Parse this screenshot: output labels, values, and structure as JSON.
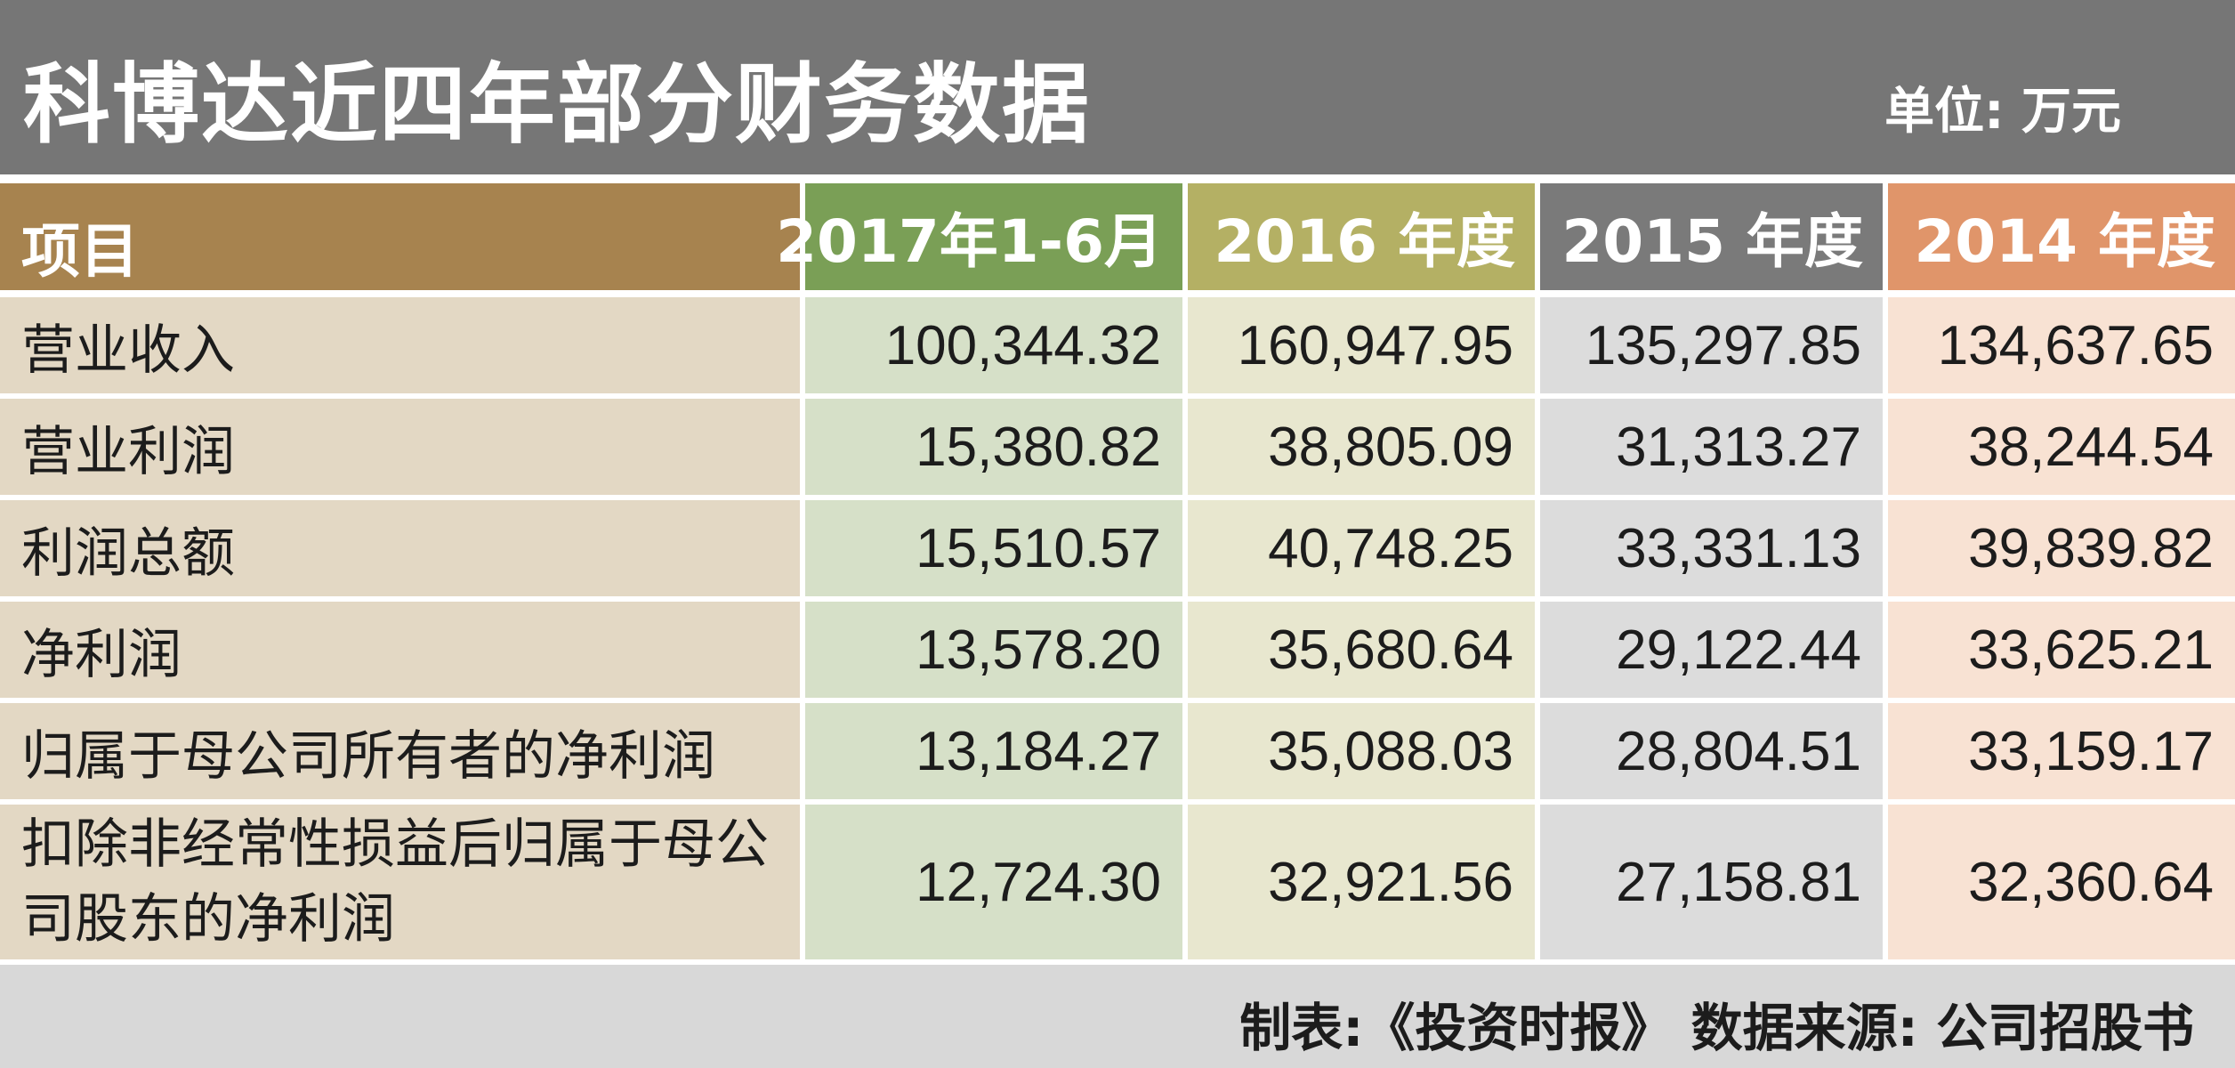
{
  "title": "科博达近四年部分财务数据",
  "unit": "单位: 万元",
  "footer": "制表:《投资时报》 数据来源: 公司招股书",
  "colors": {
    "title_bg": "#767676",
    "header_item": "#a7834f",
    "header_2017": "#7a9f56",
    "header_2016": "#b4b064",
    "header_2015": "#7a7a7a",
    "header_2014": "#e0956a",
    "body_item": "#e3d8c4",
    "body_2017": "#d6e0c8",
    "body_2016": "#e8e7cf",
    "body_2015": "#dcdcdc",
    "body_2014": "#f8e2d3",
    "footer_bg": "#d8d8d8"
  },
  "table": {
    "headers": [
      "项目",
      "2017年1-6月",
      "2016 年度",
      "2015 年度",
      "2014 年度"
    ],
    "rows": [
      {
        "label": "营业收入",
        "values": [
          "100,344.32",
          "160,947.95",
          "135,297.85",
          "134,637.65"
        ]
      },
      {
        "label": "营业利润",
        "values": [
          "15,380.82",
          "38,805.09",
          "31,313.27",
          "38,244.54"
        ]
      },
      {
        "label": "利润总额",
        "values": [
          "15,510.57",
          "40,748.25",
          "33,331.13",
          "39,839.82"
        ]
      },
      {
        "label": "净利润",
        "values": [
          "13,578.20",
          "35,680.64",
          "29,122.44",
          "33,625.21"
        ]
      },
      {
        "label": "归属于母公司所有者的净利润",
        "values": [
          "13,184.27",
          "35,088.03",
          "28,804.51",
          "33,159.17"
        ]
      },
      {
        "label": "扣除非经常性损益后归属于母公司股东的净利润",
        "values": [
          "12,724.30",
          "32,921.56",
          "27,158.81",
          "32,360.64"
        ]
      }
    ]
  }
}
